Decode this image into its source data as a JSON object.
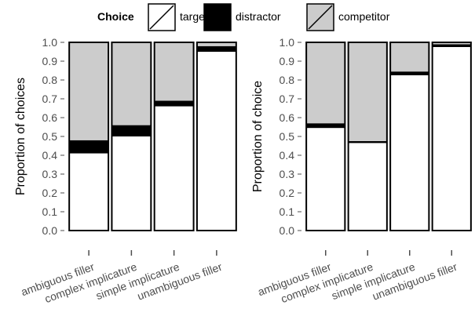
{
  "legend": {
    "title": "Choice",
    "placement": "top",
    "items": [
      {
        "key": "target",
        "label": "target",
        "color": "#ffffff"
      },
      {
        "key": "distractor",
        "label": "distractor",
        "color": "#000000"
      },
      {
        "key": "competitor",
        "label": "competitor",
        "color": "#cccccc"
      }
    ]
  },
  "chart_data": [
    {
      "type": "bar",
      "stacked": true,
      "title": "",
      "xlabel": "",
      "ylabel": "Proportion of choices",
      "ylim": [
        0,
        1
      ],
      "yticks": [
        "0.0",
        "0.1",
        "0.2",
        "0.3",
        "0.4",
        "0.5",
        "0.6",
        "0.7",
        "0.8",
        "0.9",
        "1.0"
      ],
      "grid": false,
      "categories": [
        "ambiguous filler",
        "complex implicature",
        "simple implicature",
        "unambiguous filler"
      ],
      "series": [
        {
          "name": "target",
          "values": [
            0.41,
            0.5,
            0.66,
            0.95
          ]
        },
        {
          "name": "distractor",
          "values": [
            0.07,
            0.06,
            0.03,
            0.03
          ]
        },
        {
          "name": "competitor",
          "values": [
            0.52,
            0.44,
            0.31,
            0.02
          ]
        }
      ]
    },
    {
      "type": "bar",
      "stacked": true,
      "title": "",
      "xlabel": "",
      "ylabel": "Proportion of choice",
      "ylim": [
        0,
        1
      ],
      "yticks": [
        "0.0",
        "0.1",
        "0.2",
        "0.3",
        "0.4",
        "0.5",
        "0.6",
        "0.7",
        "0.8",
        "0.9",
        "1.0"
      ],
      "grid": false,
      "categories": [
        "ambiguous filler",
        "complex implicature",
        "simple implicature",
        "unambiguous filler"
      ],
      "series": [
        {
          "name": "target",
          "values": [
            0.545,
            0.465,
            0.825,
            0.975
          ]
        },
        {
          "name": "distractor",
          "values": [
            0.025,
            0.01,
            0.02,
            0.015
          ]
        },
        {
          "name": "competitor",
          "values": [
            0.43,
            0.525,
            0.155,
            0.01
          ]
        }
      ]
    }
  ]
}
